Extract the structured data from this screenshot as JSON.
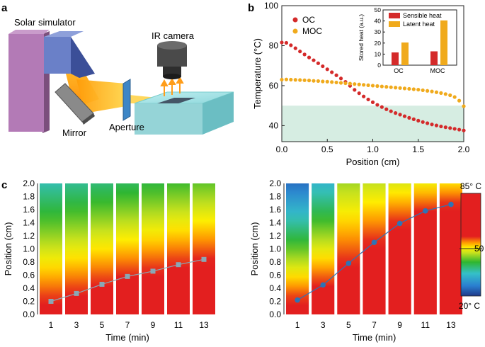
{
  "panel_labels": [
    "a",
    "b",
    "c"
  ],
  "panel_a": {
    "labels": {
      "solar_simulator": "Solar simulator",
      "ir_camera": "IR camera",
      "mirror": "Mirror",
      "aperture": "Aperture"
    }
  },
  "chart_data": [
    {
      "id": "b-main",
      "type": "scatter",
      "xlabel": "Position (cm)",
      "ylabel": "Temperature (°C)",
      "xlim": [
        0,
        2.0
      ],
      "ylim": [
        32,
        100
      ],
      "xticks": [
        0.0,
        0.5,
        1.0,
        1.5,
        2.0
      ],
      "yticks": [
        40,
        60,
        80,
        100
      ],
      "shaded_band": [
        32,
        50
      ],
      "series": [
        {
          "name": "OC",
          "color": "#d42a2a",
          "x": [
            0.0,
            0.05,
            0.1,
            0.15,
            0.2,
            0.25,
            0.3,
            0.35,
            0.4,
            0.45,
            0.5,
            0.55,
            0.6,
            0.65,
            0.7,
            0.75,
            0.8,
            0.85,
            0.9,
            0.95,
            1.0,
            1.05,
            1.1,
            1.15,
            1.2,
            1.25,
            1.3,
            1.35,
            1.4,
            1.45,
            1.5,
            1.55,
            1.6,
            1.65,
            1.7,
            1.75,
            1.8,
            1.85,
            1.9,
            1.95,
            2.0
          ],
          "y": [
            81.6,
            81.4,
            80.2,
            78.7,
            77.1,
            75.6,
            74.1,
            72.7,
            71.2,
            69.7,
            68.2,
            66.7,
            65.2,
            63.6,
            61.9,
            59.9,
            57.9,
            56.2,
            54.6,
            53.1,
            51.7,
            50.4,
            49.3,
            48.2,
            47.2,
            46.3,
            45.5,
            44.7,
            43.9,
            43.2,
            42.5,
            41.8,
            41.2,
            40.6,
            40.1,
            39.6,
            39.2,
            38.8,
            38.4,
            38.0,
            37.6
          ]
        },
        {
          "name": "MOC",
          "color": "#f0aa1c",
          "x": [
            0.0,
            0.05,
            0.1,
            0.15,
            0.2,
            0.25,
            0.3,
            0.35,
            0.4,
            0.45,
            0.5,
            0.55,
            0.6,
            0.65,
            0.7,
            0.75,
            0.8,
            0.85,
            0.9,
            0.95,
            1.0,
            1.05,
            1.1,
            1.15,
            1.2,
            1.25,
            1.3,
            1.35,
            1.4,
            1.45,
            1.5,
            1.55,
            1.6,
            1.65,
            1.7,
            1.75,
            1.8,
            1.85,
            1.9,
            1.95,
            2.0
          ],
          "y": [
            63.0,
            63.1,
            63.0,
            62.9,
            62.8,
            62.7,
            62.6,
            62.4,
            62.3,
            62.1,
            62.0,
            61.8,
            61.6,
            61.4,
            61.2,
            61.0,
            60.8,
            60.6,
            60.4,
            60.2,
            60.0,
            59.8,
            59.6,
            59.4,
            59.2,
            59.0,
            58.8,
            58.6,
            58.4,
            58.2,
            58.0,
            57.7,
            57.4,
            57.1,
            56.7,
            56.3,
            55.8,
            55.2,
            54.3,
            52.5,
            49.7
          ]
        }
      ],
      "legend": [
        "OC",
        "MOC"
      ]
    },
    {
      "id": "b-inset",
      "type": "bar",
      "ylabel": "Stored heat (a.u.)",
      "categories": [
        "OC",
        "MOC"
      ],
      "ylim": [
        0,
        50
      ],
      "yticks": [
        0,
        10,
        20,
        30,
        40,
        50
      ],
      "series": [
        {
          "name": "Sensible heat",
          "color": "#d42a2a",
          "values": [
            11.5,
            12.5
          ]
        },
        {
          "name": "Latent heat",
          "color": "#f0aa1c",
          "values": [
            20.5,
            40.5
          ]
        }
      ]
    },
    {
      "id": "c-left",
      "type": "heatmap",
      "xlabel": "Time (min)",
      "ylabel": "Position (cm)",
      "ylim": [
        0,
        2.0
      ],
      "yticks": [
        "0.0",
        "0.2",
        "0.4",
        "0.6",
        "0.8",
        "1.0",
        "1.2",
        "1.4",
        "1.6",
        "1.8",
        "2.0"
      ],
      "categories": [
        "1",
        "3",
        "5",
        "7",
        "9",
        "11",
        "13"
      ],
      "front_positions": [
        0.2,
        0.32,
        0.46,
        0.58,
        0.66,
        0.76,
        0.84
      ],
      "marker_color": "#8aa7b5"
    },
    {
      "id": "c-right",
      "type": "heatmap",
      "xlabel": "Time (min)",
      "ylabel": "Position (cm)",
      "ylim": [
        0,
        2.0
      ],
      "yticks": [
        "0.0",
        "0.2",
        "0.4",
        "0.6",
        "0.8",
        "1.0",
        "1.2",
        "1.4",
        "1.6",
        "1.8",
        "2.0"
      ],
      "categories": [
        "1",
        "3",
        "5",
        "7",
        "9",
        "11",
        "13"
      ],
      "front_positions": [
        0.22,
        0.45,
        0.78,
        1.1,
        1.39,
        1.58,
        1.68
      ],
      "marker_color": "#2f73b5"
    },
    {
      "id": "c-colorbar",
      "type": "heatmap",
      "labels": {
        "max": "85° C",
        "mid": "50",
        "min": "20° C"
      },
      "range": [
        20,
        85
      ]
    }
  ]
}
